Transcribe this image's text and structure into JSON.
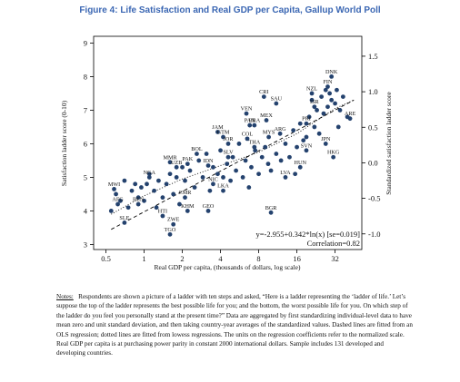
{
  "figure": {
    "title": "Figure 4: Life Satisfaction and Real GDP per Capita, Gallup World Poll",
    "notes_label": "Notes:",
    "notes_text": "Respondents are shown a picture of a ladder with ten steps and asked, “Here is a ladder representing the ‘ladder of life.’ Let’s suppose the top of the ladder represents the best possible life for you; and the bottom, the worst possible life for you. On which step of the ladder do you feel you personally stand at the present time?” Data are aggregated by first standardizing individual-level data to have mean zero and unit standard deviation, and then taking country-year averages of the standardized values. Dashed lines are fitted from an OLS regression; dotted lines are fitted from lowess regressions. The units on the regression coefficients refer to the normalized scale. Real GDP per capita is at purchasing power parity in constant 2000 international dollars. Sample includes 131 developed and developing countries."
  },
  "chart_data": {
    "type": "scatter",
    "xlabel": "Real GDP per capita, (thousands of dollars, log scale)",
    "ylabel": "Satisfaction ladder score (0-10)",
    "y2label": "Standardized satisfaction ladder score",
    "x_scale": "log",
    "xlim": [
      0.4,
      52
    ],
    "ylim": [
      2.85,
      9.2
    ],
    "y2lim": [
      -1.22,
      1.78
    ],
    "xticks": [
      0.5,
      1,
      2,
      4,
      8,
      16,
      32
    ],
    "xtick_labels": [
      "0.5",
      "1",
      "2",
      "4",
      "8",
      "16",
      "32"
    ],
    "yticks": [
      3,
      4,
      5,
      6,
      7,
      8,
      9
    ],
    "y2ticks": [
      -1.0,
      -0.5,
      0.0,
      0.5,
      1.0,
      1.5
    ],
    "y2tick_labels": [
      "-1.0",
      "-0.5",
      "0.0",
      "0.5",
      "1.0",
      "1.5"
    ],
    "annotation_eq": "y=-2.955+0.342*ln(x) [se=0.019]",
    "annotation_corr": "Correlation=0.82",
    "fit_lines": [
      "OLS dashed",
      "lowess dotted"
    ],
    "grid": false,
    "labeled_points": [
      {
        "label": "DNK",
        "x": 30,
        "y": 8.0
      },
      {
        "label": "FIN",
        "x": 28,
        "y": 7.7
      },
      {
        "label": "NZL",
        "x": 21,
        "y": 7.5
      },
      {
        "label": "CRI",
        "x": 8.8,
        "y": 7.4
      },
      {
        "label": "SAU",
        "x": 11,
        "y": 7.2
      },
      {
        "label": "VEN",
        "x": 6.4,
        "y": 6.9
      },
      {
        "label": "MEX",
        "x": 9.2,
        "y": 6.7
      },
      {
        "label": "PRI",
        "x": 19,
        "y": 6.6
      },
      {
        "label": "ARE",
        "x": 42,
        "y": 6.75
      },
      {
        "label": "PAN",
        "x": 6.8,
        "y": 6.55
      },
      {
        "label": "BRA",
        "x": 7.4,
        "y": 6.55
      },
      {
        "label": "ISR",
        "x": 22,
        "y": 7.1
      },
      {
        "label": "ARG",
        "x": 11.8,
        "y": 6.3
      },
      {
        "label": "JAM",
        "x": 3.8,
        "y": 6.35
      },
      {
        "label": "GTM",
        "x": 4.2,
        "y": 6.2
      },
      {
        "label": "JOR",
        "x": 4.6,
        "y": 6.0
      },
      {
        "label": "COL",
        "x": 6.5,
        "y": 6.15
      },
      {
        "label": "MYS",
        "x": 9.6,
        "y": 6.2
      },
      {
        "label": "THA",
        "x": 7.4,
        "y": 5.9
      },
      {
        "label": "JPN",
        "x": 27,
        "y": 6.0
      },
      {
        "label": "SVN",
        "x": 19,
        "y": 5.8
      },
      {
        "label": "HKG",
        "x": 31,
        "y": 5.6
      },
      {
        "label": "BOL",
        "x": 2.6,
        "y": 5.7
      },
      {
        "label": "SLV",
        "x": 4.6,
        "y": 5.6
      },
      {
        "label": "MMR",
        "x": 1.6,
        "y": 5.45
      },
      {
        "label": "UZB",
        "x": 1.8,
        "y": 5.3
      },
      {
        "label": "PAK",
        "x": 2.2,
        "y": 5.4
      },
      {
        "label": "IDN",
        "x": 3.2,
        "y": 5.35
      },
      {
        "label": "LVA",
        "x": 13,
        "y": 5.0
      },
      {
        "label": "NGA",
        "x": 1.1,
        "y": 5.0
      },
      {
        "label": "HUN",
        "x": 17,
        "y": 5.3
      },
      {
        "label": "NIC",
        "x": 3.5,
        "y": 4.8
      },
      {
        "label": "LKA",
        "x": 4.2,
        "y": 4.6
      },
      {
        "label": "CMR",
        "x": 2.1,
        "y": 4.4
      },
      {
        "label": "MWI",
        "x": 0.58,
        "y": 4.65
      },
      {
        "label": "AFG",
        "x": 0.62,
        "y": 4.2
      },
      {
        "label": "BEN",
        "x": 0.9,
        "y": 4.2
      },
      {
        "label": "HTI",
        "x": 1.4,
        "y": 3.85
      },
      {
        "label": "KHM",
        "x": 2.2,
        "y": 4.0
      },
      {
        "label": "GEO",
        "x": 3.2,
        "y": 4.0
      },
      {
        "label": "BGR",
        "x": 10,
        "y": 3.95
      },
      {
        "label": "ZWE",
        "x": 1.7,
        "y": 3.6
      },
      {
        "label": "TGO",
        "x": 1.6,
        "y": 3.3
      },
      {
        "label": "SLE",
        "x": 0.7,
        "y": 3.65
      }
    ],
    "points": [
      {
        "x": 0.55,
        "y": 4.0
      },
      {
        "x": 0.6,
        "y": 4.5
      },
      {
        "x": 0.65,
        "y": 4.3
      },
      {
        "x": 0.7,
        "y": 4.9
      },
      {
        "x": 0.75,
        "y": 4.1
      },
      {
        "x": 0.8,
        "y": 4.6
      },
      {
        "x": 0.85,
        "y": 4.8
      },
      {
        "x": 0.9,
        "y": 4.4
      },
      {
        "x": 0.95,
        "y": 4.7
      },
      {
        "x": 1.0,
        "y": 4.3
      },
      {
        "x": 1.05,
        "y": 4.8
      },
      {
        "x": 1.1,
        "y": 5.1
      },
      {
        "x": 1.2,
        "y": 4.6
      },
      {
        "x": 1.25,
        "y": 4.1
      },
      {
        "x": 1.3,
        "y": 4.9
      },
      {
        "x": 1.4,
        "y": 4.4
      },
      {
        "x": 1.5,
        "y": 4.8
      },
      {
        "x": 1.6,
        "y": 5.1
      },
      {
        "x": 1.7,
        "y": 4.5
      },
      {
        "x": 1.8,
        "y": 5.0
      },
      {
        "x": 1.9,
        "y": 4.2
      },
      {
        "x": 2.0,
        "y": 5.3
      },
      {
        "x": 2.1,
        "y": 4.9
      },
      {
        "x": 2.3,
        "y": 5.2
      },
      {
        "x": 2.5,
        "y": 4.7
      },
      {
        "x": 2.7,
        "y": 5.5
      },
      {
        "x": 2.9,
        "y": 5.0
      },
      {
        "x": 3.1,
        "y": 5.7
      },
      {
        "x": 3.3,
        "y": 4.6
      },
      {
        "x": 3.5,
        "y": 5.3
      },
      {
        "x": 3.8,
        "y": 5.1
      },
      {
        "x": 4.0,
        "y": 5.8
      },
      {
        "x": 4.2,
        "y": 5.0
      },
      {
        "x": 4.5,
        "y": 5.4
      },
      {
        "x": 4.8,
        "y": 4.9
      },
      {
        "x": 5.0,
        "y": 5.6
      },
      {
        "x": 5.3,
        "y": 5.2
      },
      {
        "x": 5.6,
        "y": 6.0
      },
      {
        "x": 6.0,
        "y": 5.0
      },
      {
        "x": 6.3,
        "y": 5.5
      },
      {
        "x": 6.7,
        "y": 4.7
      },
      {
        "x": 7.0,
        "y": 5.3
      },
      {
        "x": 7.5,
        "y": 5.8
      },
      {
        "x": 8.0,
        "y": 5.1
      },
      {
        "x": 8.5,
        "y": 5.6
      },
      {
        "x": 9.0,
        "y": 5.9
      },
      {
        "x": 9.5,
        "y": 5.4
      },
      {
        "x": 10.0,
        "y": 5.2
      },
      {
        "x": 11.0,
        "y": 5.7
      },
      {
        "x": 12.0,
        "y": 5.5
      },
      {
        "x": 13.0,
        "y": 6.0
      },
      {
        "x": 14.0,
        "y": 5.6
      },
      {
        "x": 15.0,
        "y": 6.4
      },
      {
        "x": 16.0,
        "y": 5.9
      },
      {
        "x": 17.0,
        "y": 6.6
      },
      {
        "x": 18.0,
        "y": 6.1
      },
      {
        "x": 20.0,
        "y": 6.8
      },
      {
        "x": 21.0,
        "y": 7.3
      },
      {
        "x": 22.0,
        "y": 6.5
      },
      {
        "x": 23.0,
        "y": 7.0
      },
      {
        "x": 24.0,
        "y": 6.3
      },
      {
        "x": 25.0,
        "y": 7.4
      },
      {
        "x": 26.0,
        "y": 6.9
      },
      {
        "x": 27.0,
        "y": 7.6
      },
      {
        "x": 28.0,
        "y": 7.1
      },
      {
        "x": 29.0,
        "y": 7.5
      },
      {
        "x": 30.0,
        "y": 7.3
      },
      {
        "x": 32.0,
        "y": 7.2
      },
      {
        "x": 33.0,
        "y": 7.6
      },
      {
        "x": 35.0,
        "y": 7.0
      },
      {
        "x": 37.0,
        "y": 7.4
      },
      {
        "x": 40.0,
        "y": 6.8
      },
      {
        "x": 34.0,
        "y": 6.5
      },
      {
        "x": 19.0,
        "y": 6.2
      },
      {
        "x": 15.5,
        "y": 5.1
      }
    ]
  }
}
